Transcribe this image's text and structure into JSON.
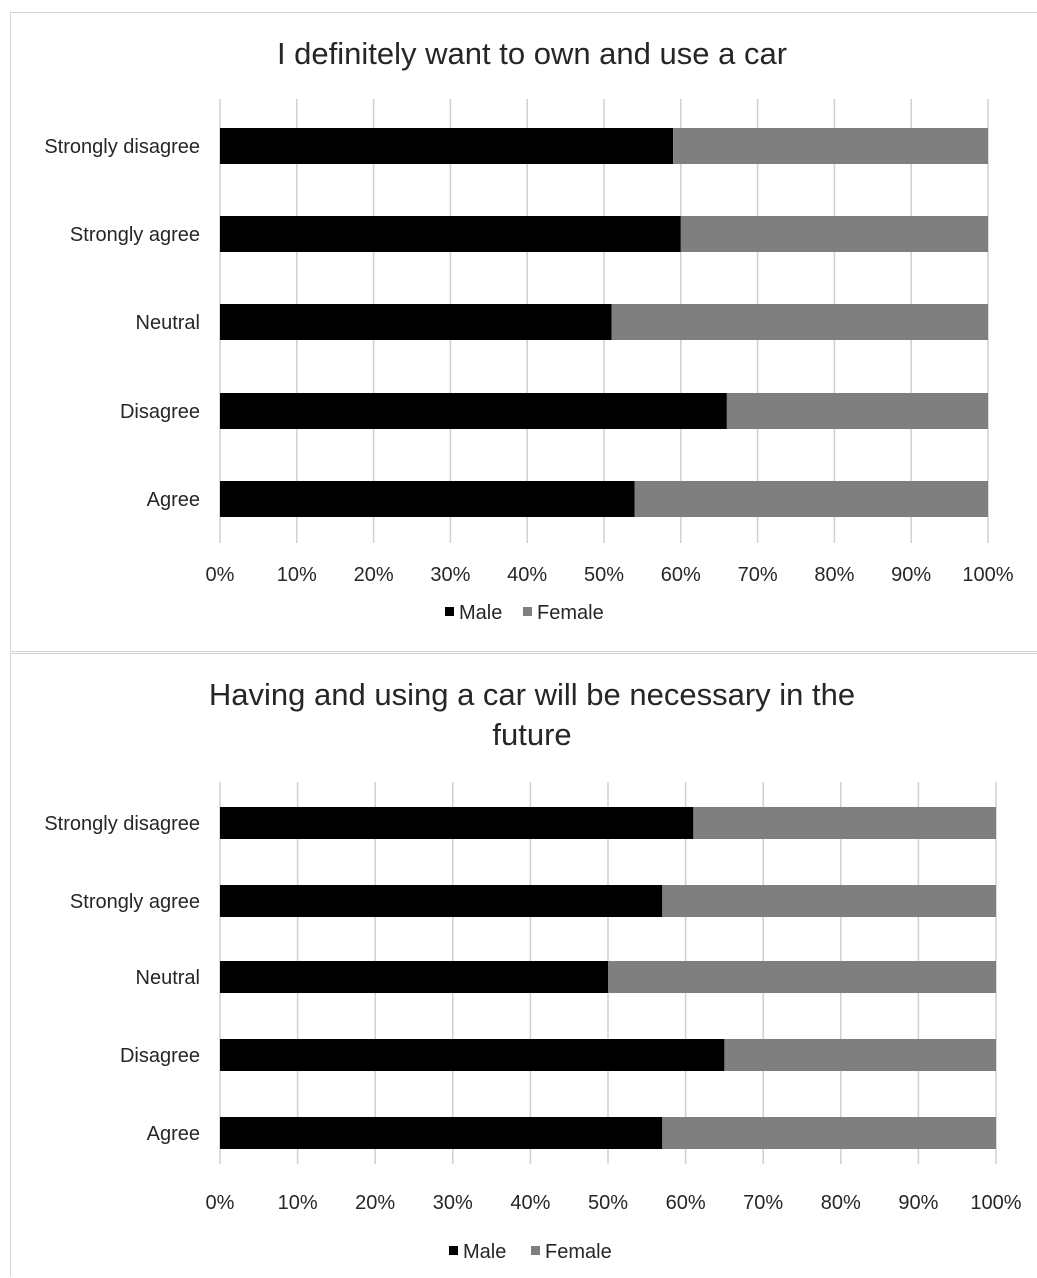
{
  "chart_data": [
    {
      "type": "bar",
      "orientation": "horizontal",
      "stacked": "percent",
      "title": "I definitely want to own and use a car",
      "categories": [
        "Strongly disagree",
        "Strongly agree",
        "Neutral",
        "Disagree",
        "Agree"
      ],
      "series": [
        {
          "name": "Male",
          "color": "#000000",
          "values": [
            59,
            60,
            51,
            66,
            54
          ]
        },
        {
          "name": "Female",
          "color": "#7f7f7f",
          "values": [
            41,
            40,
            49,
            34,
            46
          ]
        }
      ],
      "xlim": [
        0,
        100
      ],
      "xticks": [
        "0%",
        "10%",
        "20%",
        "30%",
        "40%",
        "50%",
        "60%",
        "70%",
        "80%",
        "90%",
        "100%"
      ],
      "grid": "vertical",
      "legend": "bottom"
    },
    {
      "type": "bar",
      "orientation": "horizontal",
      "stacked": "percent",
      "title": "Having and using a car will be necessary in the future",
      "title_lines": [
        "Having and using a car will be necessary in the",
        "future"
      ],
      "categories": [
        "Strongly disagree",
        "Strongly agree",
        "Neutral",
        "Disagree",
        "Agree"
      ],
      "series": [
        {
          "name": "Male",
          "color": "#000000",
          "values": [
            61,
            57,
            50,
            65,
            57
          ]
        },
        {
          "name": "Female",
          "color": "#7f7f7f",
          "values": [
            39,
            43,
            50,
            35,
            43
          ]
        }
      ],
      "xlim": [
        0,
        100
      ],
      "xticks": [
        "0%",
        "10%",
        "20%",
        "30%",
        "40%",
        "50%",
        "60%",
        "70%",
        "80%",
        "90%",
        "100%"
      ],
      "grid": "vertical",
      "legend": "bottom"
    }
  ]
}
